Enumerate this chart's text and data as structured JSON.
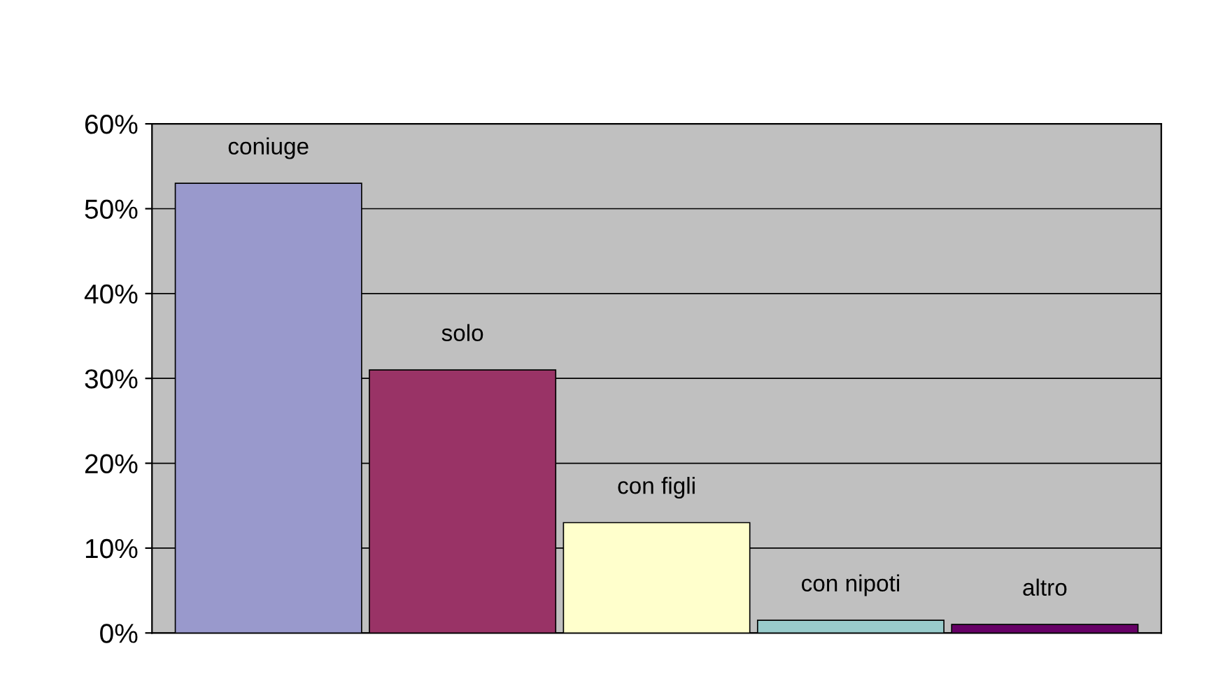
{
  "chart_data": {
    "type": "bar",
    "categories": [
      "coniuge",
      "solo",
      "con figli",
      "con nipoti",
      "altro"
    ],
    "values": [
      53,
      31,
      13,
      1.5,
      1
    ],
    "colors": [
      "#9999cc",
      "#993366",
      "#ffffcc",
      "#99cccc",
      "#660066"
    ],
    "ylim": [
      0,
      60
    ],
    "yticks": [
      {
        "value": 0,
        "label": "0%"
      },
      {
        "value": 10,
        "label": "10%"
      },
      {
        "value": 20,
        "label": "20%"
      },
      {
        "value": 30,
        "label": "30%"
      },
      {
        "value": 40,
        "label": "40%"
      },
      {
        "value": 50,
        "label": "50%"
      },
      {
        "value": 60,
        "label": "60%"
      }
    ],
    "grid": "y",
    "legend": false
  }
}
